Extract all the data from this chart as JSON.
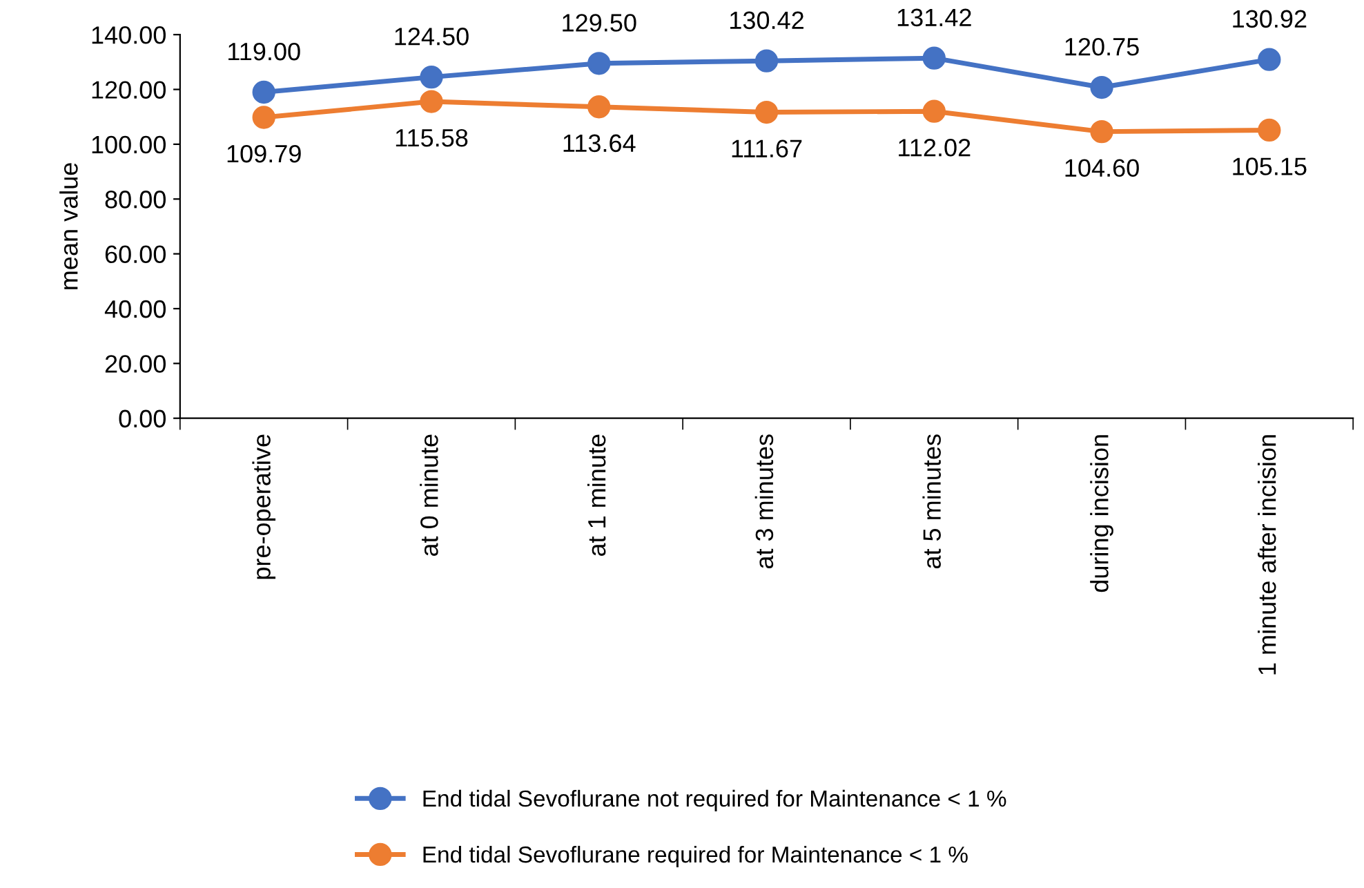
{
  "chart_data": {
    "type": "line",
    "ylabel": "mean value",
    "categories": [
      "pre-operative",
      "at 0 minute",
      "at 1 minute",
      "at 3 minutes",
      "at 5 minutes",
      "during incision",
      "1 minute after incision"
    ],
    "series": [
      {
        "name": "End tidal Sevoflurane not required for Maintenance < 1 %",
        "color": "#4472c4",
        "values": [
          119.0,
          124.5,
          129.5,
          130.42,
          131.42,
          120.75,
          130.92
        ],
        "value_labels": [
          "119.00",
          "124.50",
          "129.50",
          "130.42",
          "131.42",
          "120.75",
          "130.92"
        ]
      },
      {
        "name": "End tidal Sevoflurane required for Maintenance < 1 %",
        "color": "#ed7d31",
        "values": [
          109.79,
          115.58,
          113.64,
          111.67,
          112.02,
          104.6,
          105.15
        ],
        "value_labels": [
          "109.79",
          "115.58",
          "113.64",
          "111.67",
          "112.02",
          "104.60",
          "105.15"
        ]
      }
    ],
    "ylim": [
      0,
      140
    ],
    "yticks": [
      {
        "value": 0,
        "label": "0.00"
      },
      {
        "value": 20,
        "label": "20.00"
      },
      {
        "value": 40,
        "label": "40.00"
      },
      {
        "value": 60,
        "label": "60.00"
      },
      {
        "value": 80,
        "label": "80.00"
      },
      {
        "value": 100,
        "label": "100.00"
      },
      {
        "value": 120,
        "label": "120.00"
      },
      {
        "value": 140,
        "label": "140.00"
      }
    ],
    "grid": false,
    "legend": "bottom",
    "marker": "circle",
    "line_style": "solid"
  }
}
